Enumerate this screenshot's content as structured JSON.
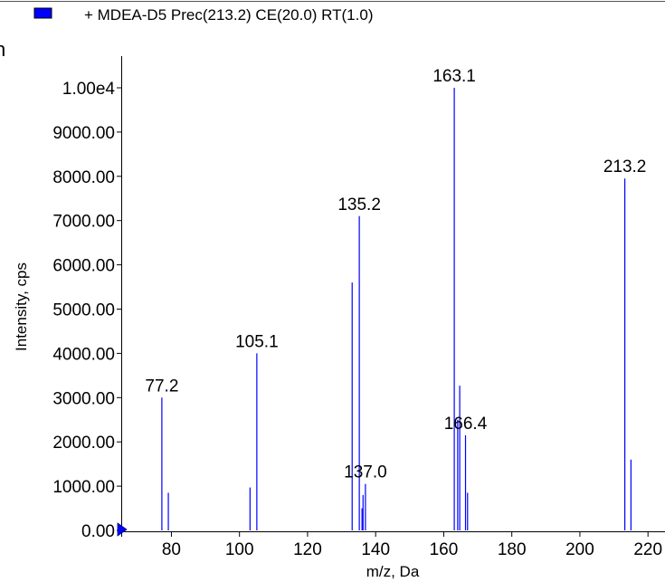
{
  "legend": {
    "label": "+ MDEA-D5 Prec(213.2) CE(20.0) RT(1.0)",
    "swatch_color": "#0000ff"
  },
  "clipped_text": "n",
  "chart_data": {
    "type": "bar",
    "title": "",
    "xlabel": "m/z, Da",
    "ylabel": "Intensity, cps",
    "xlim": [
      65,
      225
    ],
    "ylim": [
      0,
      10000
    ],
    "x_ticks": [
      80,
      100,
      120,
      140,
      160,
      180,
      200,
      220
    ],
    "x_tick_labels": [
      "80",
      "100",
      "120",
      "140",
      "160",
      "180",
      "200",
      "220"
    ],
    "y_ticks": [
      0,
      1000,
      2000,
      3000,
      4000,
      5000,
      6000,
      7000,
      8000,
      9000,
      10000
    ],
    "y_tick_labels": [
      "0.00",
      "1000.00",
      "2000.00",
      "3000.00",
      "4000.00",
      "5000.00",
      "6000.00",
      "7000.00",
      "8000.00",
      "9000.00",
      "1.00e4"
    ],
    "bar_color": "#0000ff",
    "grid": false,
    "legend_position": "top-left",
    "series": [
      {
        "name": "+ MDEA-D5 Prec(213.2) CE(20.0) RT(1.0)",
        "x": [
          77.2,
          79.1,
          103.1,
          105.1,
          133.1,
          135.2,
          136.0,
          136.3,
          137.0,
          163.1,
          164.1,
          164.7,
          166.4,
          167.0,
          213.2,
          215.0
        ],
        "values": [
          3000,
          850,
          970,
          4000,
          5600,
          7100,
          500,
          800,
          1050,
          10000,
          2500,
          3270,
          2150,
          850,
          7950,
          1600
        ]
      }
    ],
    "peak_labels": [
      {
        "x": 77.2,
        "y": 3000,
        "text": "77.2"
      },
      {
        "x": 105.1,
        "y": 4000,
        "text": "105.1"
      },
      {
        "x": 135.2,
        "y": 7100,
        "text": "135.2"
      },
      {
        "x": 137.0,
        "y": 1050,
        "text": "137.0"
      },
      {
        "x": 163.1,
        "y": 10000,
        "text": "163.1"
      },
      {
        "x": 166.4,
        "y": 2150,
        "text": "166.4"
      },
      {
        "x": 213.2,
        "y": 7950,
        "text": "213.2"
      }
    ]
  }
}
